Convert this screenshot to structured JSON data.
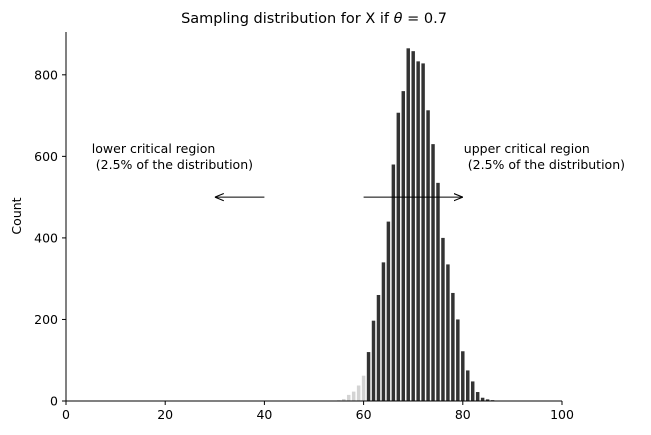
{
  "chart_data": {
    "type": "bar",
    "title": "Sampling distribution for X if θ = 0.7",
    "title_parts": {
      "prefix": "Sampling distribution for X if ",
      "symbol": "θ",
      "suffix": " = 0.7"
    },
    "xlabel": "",
    "ylabel": "Count",
    "xlim": [
      0,
      100
    ],
    "ylim": [
      0,
      905
    ],
    "xticks": [
      0,
      20,
      40,
      60,
      80,
      100
    ],
    "yticks": [
      0,
      200,
      400,
      600,
      800
    ],
    "grid": false,
    "bars": [
      {
        "x": 55,
        "value": 2,
        "region": "lower"
      },
      {
        "x": 56,
        "value": 5,
        "region": "lower"
      },
      {
        "x": 57,
        "value": 15,
        "region": "lower"
      },
      {
        "x": 58,
        "value": 23,
        "region": "lower"
      },
      {
        "x": 59,
        "value": 38,
        "region": "lower"
      },
      {
        "x": 60,
        "value": 62,
        "region": "lower"
      },
      {
        "x": 61,
        "value": 120,
        "region": "central"
      },
      {
        "x": 62,
        "value": 197,
        "region": "central"
      },
      {
        "x": 63,
        "value": 260,
        "region": "central"
      },
      {
        "x": 64,
        "value": 340,
        "region": "central"
      },
      {
        "x": 65,
        "value": 440,
        "region": "central"
      },
      {
        "x": 66,
        "value": 580,
        "region": "central"
      },
      {
        "x": 67,
        "value": 707,
        "region": "central"
      },
      {
        "x": 68,
        "value": 760,
        "region": "central"
      },
      {
        "x": 69,
        "value": 865,
        "region": "central"
      },
      {
        "x": 70,
        "value": 858,
        "region": "central"
      },
      {
        "x": 71,
        "value": 833,
        "region": "central"
      },
      {
        "x": 72,
        "value": 828,
        "region": "central"
      },
      {
        "x": 73,
        "value": 713,
        "region": "central"
      },
      {
        "x": 74,
        "value": 630,
        "region": "central"
      },
      {
        "x": 75,
        "value": 535,
        "region": "central"
      },
      {
        "x": 76,
        "value": 400,
        "region": "central"
      },
      {
        "x": 77,
        "value": 335,
        "region": "central"
      },
      {
        "x": 78,
        "value": 265,
        "region": "central"
      },
      {
        "x": 79,
        "value": 200,
        "region": "central"
      },
      {
        "x": 80,
        "value": 122,
        "region": "central"
      },
      {
        "x": 81,
        "value": 75,
        "region": "upper"
      },
      {
        "x": 82,
        "value": 48,
        "region": "upper"
      },
      {
        "x": 83,
        "value": 22,
        "region": "upper"
      },
      {
        "x": 84,
        "value": 8,
        "region": "upper"
      },
      {
        "x": 85,
        "value": 4,
        "region": "upper"
      },
      {
        "x": 86,
        "value": 2,
        "region": "upper"
      }
    ],
    "colors": {
      "lower": "#d3d3d3",
      "central": "#333333",
      "upper": "#333333"
    },
    "annotations": [
      {
        "lines": [
          "lower critical region",
          " (2.5% of the distribution)"
        ],
        "x": 5,
        "y": 620
      },
      {
        "lines": [
          "upper critical region",
          " (2.5% of the distribution)"
        ],
        "x": 80,
        "y": 620
      }
    ],
    "arrows": [
      {
        "from": [
          40,
          500
        ],
        "to": [
          30,
          500
        ]
      },
      {
        "from": [
          60,
          500
        ],
        "to": [
          80,
          500
        ]
      }
    ]
  }
}
